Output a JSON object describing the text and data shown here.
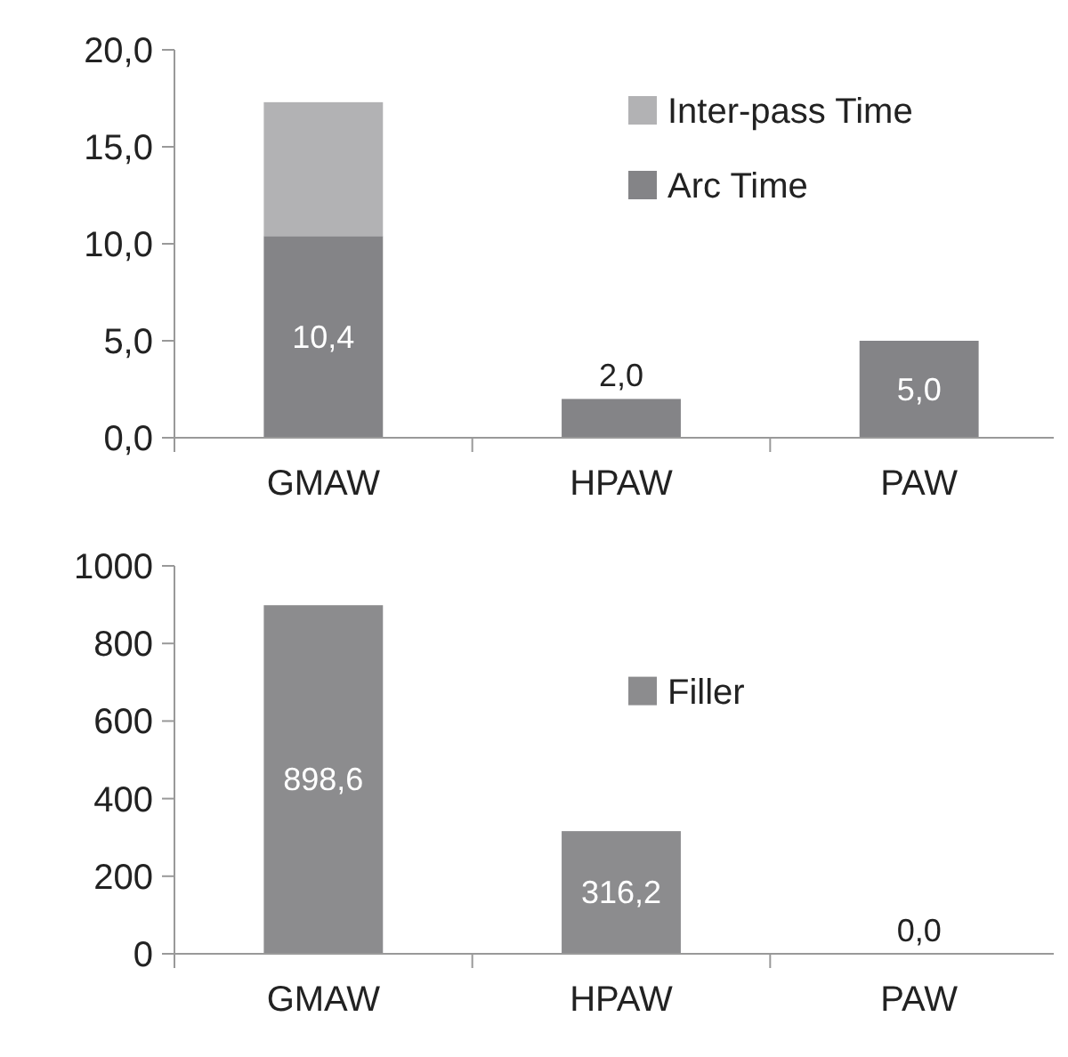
{
  "chart_data": [
    {
      "type": "bar",
      "stacked": true,
      "categories": [
        "GMAW",
        "HPAW",
        "PAW"
      ],
      "series": [
        {
          "name": "Arc Time",
          "color": "#848487",
          "values": [
            10.4,
            2.0,
            5.0
          ],
          "value_labels": [
            "10,4",
            "2,0",
            "5,0"
          ]
        },
        {
          "name": "Inter-pass Time",
          "color": "#b2b2b4",
          "values": [
            6.9,
            null,
            null
          ]
        }
      ],
      "ylim": [
        0,
        20
      ],
      "yticks": [
        {
          "value": 0,
          "label": "0,0"
        },
        {
          "value": 5,
          "label": "5,0"
        },
        {
          "value": 10,
          "label": "10,0"
        },
        {
          "value": 15,
          "label": "15,0"
        },
        {
          "value": 20,
          "label": "20,0"
        }
      ],
      "legend": "top right",
      "grid": false
    },
    {
      "type": "bar",
      "categories": [
        "GMAW",
        "HPAW",
        "PAW"
      ],
      "series": [
        {
          "name": "Filler",
          "color": "#8c8c8e",
          "values": [
            898.6,
            316.2,
            0.0
          ],
          "value_labels": [
            "898,6",
            "316,2",
            "0,0"
          ]
        }
      ],
      "ylim": [
        0,
        1000
      ],
      "yticks": [
        0,
        200,
        400,
        600,
        800,
        1000
      ],
      "legend": "center right",
      "grid": false
    }
  ]
}
